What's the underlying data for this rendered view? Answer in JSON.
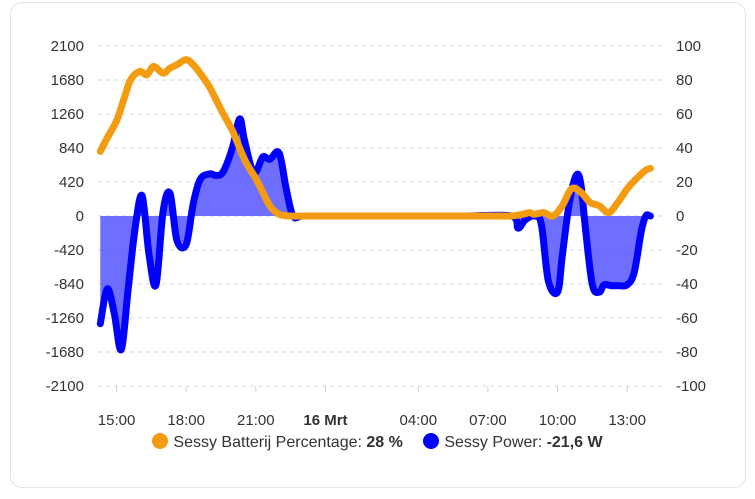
{
  "chart_data": {
    "type": "line",
    "title": "",
    "x_tick_labels": [
      "15:00",
      "18:00",
      "21:00",
      "16 Mrt",
      "04:00",
      "07:00",
      "10:00",
      "13:00"
    ],
    "x_tick_hours": [
      15,
      18,
      21,
      24,
      28,
      31,
      34,
      37
    ],
    "x_range_hours": [
      14.2,
      38.5
    ],
    "left_axis": {
      "range": [
        -2100,
        2100
      ],
      "ticks": [
        2100,
        1680,
        1260,
        840,
        420,
        0,
        -420,
        -840,
        -1260,
        -1680,
        -2100
      ]
    },
    "right_axis": {
      "range": [
        -100,
        100
      ],
      "ticks": [
        100,
        80,
        60,
        40,
        20,
        0,
        -20,
        -40,
        -60,
        -80,
        -100
      ]
    },
    "grid": true,
    "series": [
      {
        "name": "Sessy Batterij Percentage",
        "axis": "right",
        "color": "#f39c12",
        "current_value": "28 %",
        "x": [
          14.3,
          14.6,
          15.0,
          15.3,
          15.6,
          16.0,
          16.3,
          16.6,
          17.0,
          17.3,
          17.6,
          18.0,
          18.3,
          18.6,
          19.0,
          19.3,
          19.6,
          20.0,
          20.3,
          20.6,
          21.0,
          21.3,
          21.6,
          22.0,
          22.5,
          23.0,
          24.0,
          26.0,
          28.0,
          30.0,
          31.5,
          32.0,
          32.5,
          32.8,
          33.0,
          33.4,
          33.8,
          34.2,
          34.6,
          35.0,
          35.4,
          35.8,
          36.2,
          36.6,
          37.0,
          37.4,
          37.8,
          38.0
        ],
        "y": [
          38,
          46,
          56,
          68,
          80,
          85,
          83,
          88,
          84,
          87,
          89,
          92,
          89,
          84,
          76,
          68,
          60,
          50,
          40,
          31,
          22,
          14,
          6,
          1,
          0,
          0,
          0,
          0,
          0,
          0,
          0,
          0,
          1,
          2,
          1,
          2,
          0,
          6,
          16,
          14,
          8,
          6,
          2,
          8,
          16,
          22,
          27,
          28
        ]
      },
      {
        "name": "Sessy Power",
        "axis": "left",
        "color": "#0000ff",
        "fill": "#5555ff",
        "current_value": "-21,6 W",
        "x": [
          14.3,
          14.6,
          14.9,
          15.2,
          15.5,
          15.8,
          16.1,
          16.4,
          16.7,
          17.0,
          17.3,
          17.6,
          18.0,
          18.3,
          18.6,
          19.0,
          19.3,
          19.6,
          20.0,
          20.3,
          20.5,
          20.8,
          21.0,
          21.3,
          21.6,
          22.0,
          22.3,
          22.6,
          23.0,
          24.0,
          26.0,
          28.0,
          30.0,
          32.0,
          32.3,
          32.6,
          33.0,
          33.3,
          33.6,
          34.0,
          34.2,
          34.5,
          34.8,
          35.0,
          35.2,
          35.5,
          35.8,
          36.0,
          36.3,
          36.6,
          37.0,
          37.3,
          37.6,
          37.8,
          38.0
        ],
        "y": [
          -1330,
          -900,
          -1200,
          -1650,
          -900,
          -150,
          250,
          -480,
          -850,
          50,
          280,
          -300,
          -350,
          150,
          450,
          520,
          500,
          550,
          850,
          1200,
          950,
          600,
          540,
          730,
          700,
          780,
          350,
          0,
          0,
          0,
          0,
          0,
          0,
          0,
          -150,
          -50,
          0,
          -100,
          -800,
          -940,
          -500,
          150,
          500,
          400,
          -150,
          -850,
          -940,
          -850,
          -860,
          -860,
          -850,
          -700,
          -200,
          0,
          0
        ]
      }
    ]
  }
}
